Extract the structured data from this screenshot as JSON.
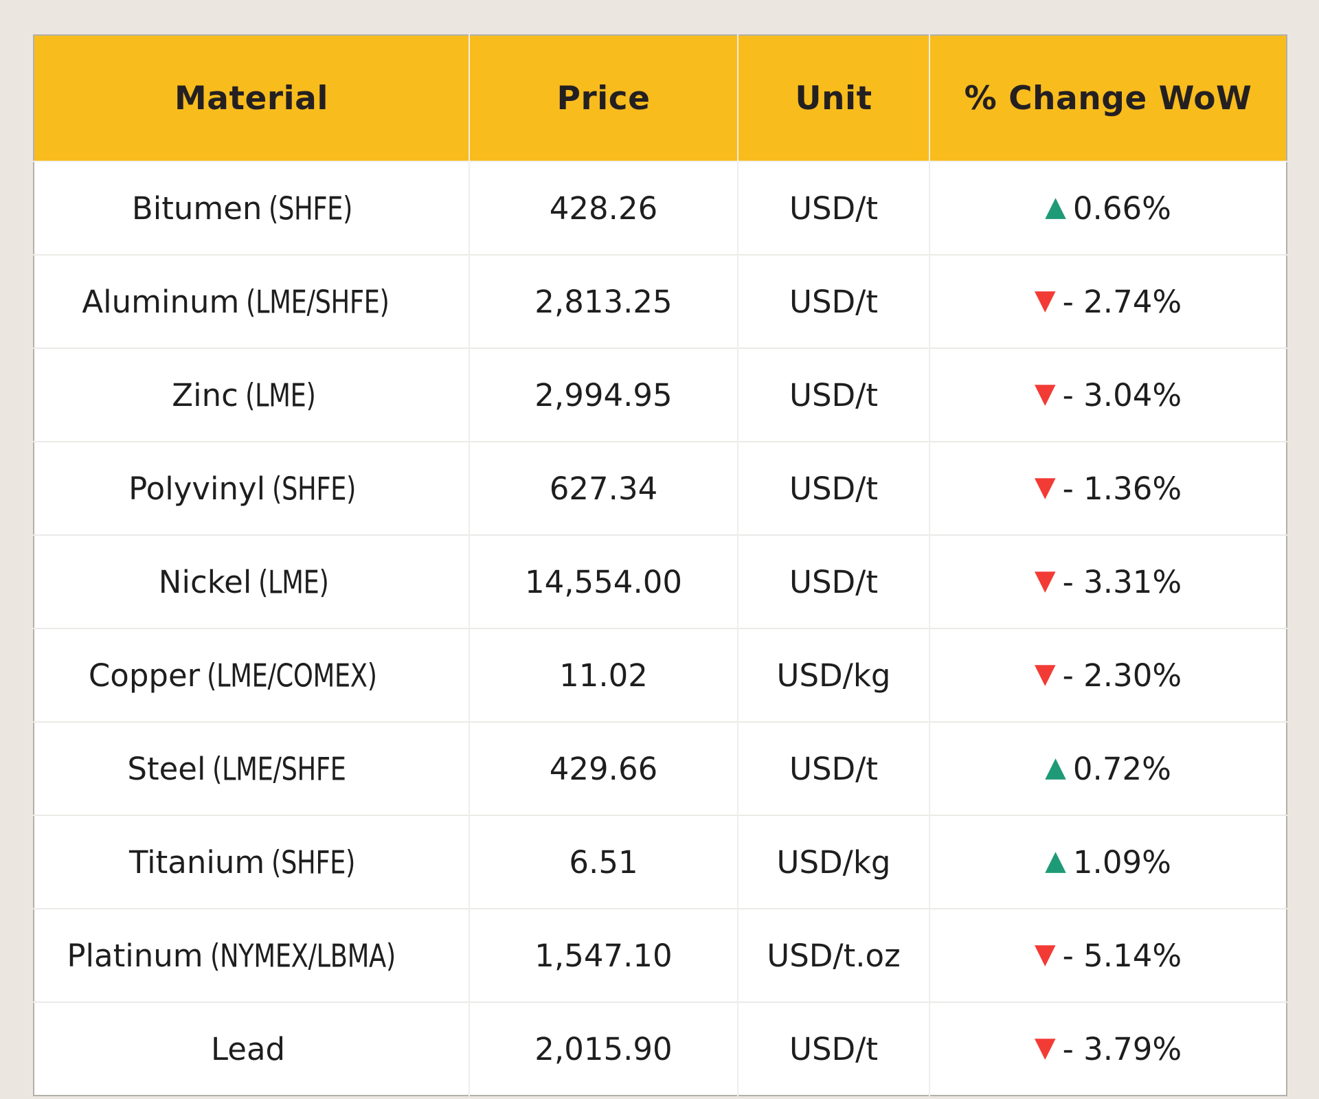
{
  "table": {
    "columns": {
      "material": "Material",
      "price": "Price",
      "unit": "Unit",
      "change": "% Change WoW"
    },
    "rows": [
      {
        "material": "Bitumen",
        "exchange": "(SHFE)",
        "price": "428.26",
        "unit": "USD/t",
        "trend": "up",
        "icon": "▲",
        "change": "0.66%"
      },
      {
        "material": "Aluminum",
        "exchange": "(LME/SHFE)",
        "price": "2,813.25",
        "unit": "USD/t",
        "trend": "down",
        "icon": "▼",
        "change": "- 2.74%"
      },
      {
        "material": "Zinc",
        "exchange": "(LME)",
        "price": "2,994.95",
        "unit": "USD/t",
        "trend": "down",
        "icon": "▼",
        "change": "- 3.04%"
      },
      {
        "material": "Polyvinyl",
        "exchange": "(SHFE)",
        "price": "627.34",
        "unit": "USD/t",
        "trend": "down",
        "icon": "▼",
        "change": "- 1.36%"
      },
      {
        "material": "Nickel",
        "exchange": "(LME)",
        "price": "14,554.00",
        "unit": "USD/t",
        "trend": "down",
        "icon": "▼",
        "change": "- 3.31%"
      },
      {
        "material": "Copper",
        "exchange": "(LME/COMEX)",
        "price": "11.02",
        "unit": "USD/kg",
        "trend": "down",
        "icon": "▼",
        "change": "- 2.30%"
      },
      {
        "material": "Steel",
        "exchange": "(LME/SHFE",
        "price": "429.66",
        "unit": "USD/t",
        "trend": "up",
        "icon": "▲",
        "change": "0.72%"
      },
      {
        "material": "Titanium",
        "exchange": "(SHFE)",
        "price": "6.51",
        "unit": "USD/kg",
        "trend": "up",
        "icon": "▲",
        "change": "1.09%"
      },
      {
        "material": "Platinum",
        "exchange": "(NYMEX/LBMA)",
        "price": "1,547.10",
        "unit": "USD/t.oz",
        "trend": "down",
        "icon": "▼",
        "change": "- 5.14%"
      },
      {
        "material": "Lead",
        "exchange": "",
        "price": "2,015.90",
        "unit": "USD/t",
        "trend": "down",
        "icon": "▼",
        "change": "- 3.79%"
      }
    ],
    "colors": {
      "header_bg": "#F8BC1D",
      "up": "#1E9A77",
      "down": "#F23B35",
      "text": "#1E1E1E",
      "page_bg": "#EBE7E0"
    }
  },
  "chart_data": {
    "type": "table",
    "columns": [
      "Material",
      "Price",
      "Unit",
      "% Change WoW"
    ],
    "rows": [
      [
        "Bitumen (SHFE)",
        428.26,
        "USD/t",
        0.66
      ],
      [
        "Aluminum (LME/SHFE)",
        2813.25,
        "USD/t",
        -2.74
      ],
      [
        "Zinc (LME)",
        2994.95,
        "USD/t",
        -3.04
      ],
      [
        "Polyvinyl (SHFE)",
        627.34,
        "USD/t",
        -1.36
      ],
      [
        "Nickel (LME)",
        14554.0,
        "USD/t",
        -3.31
      ],
      [
        "Copper (LME/COMEX)",
        11.02,
        "USD/kg",
        -2.3
      ],
      [
        "Steel (LME/SHFE",
        429.66,
        "USD/t",
        0.72
      ],
      [
        "Titanium (SHFE)",
        6.51,
        "USD/kg",
        1.09
      ],
      [
        "Platinum (NYMEX/LBMA)",
        1547.1,
        "USD/t.oz",
        -5.14
      ],
      [
        "Lead",
        2015.9,
        "USD/t",
        -3.79
      ]
    ],
    "legend": "none",
    "notes": "green up-triangle = positive WoW change, red down-triangle = negative WoW change"
  }
}
